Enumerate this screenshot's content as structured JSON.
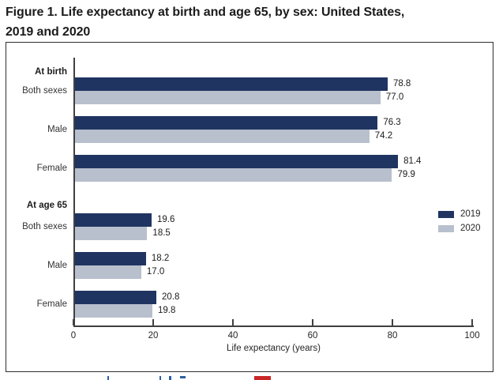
{
  "title": {
    "line1": "Figure 1. Life expectancy at birth and age 65, by sex: United States,",
    "line2": "2019 and 2020"
  },
  "chart_data": {
    "type": "bar",
    "orientation": "horizontal",
    "title": "Figure 1. Life expectancy at birth and age 65, by sex: United States, 2019 and 2020",
    "xlabel": "Life expectancy (years)",
    "xlim": [
      0,
      100
    ],
    "xticks": [
      0,
      20,
      40,
      60,
      80,
      100
    ],
    "grid": false,
    "legend_position": "right-middle",
    "series": [
      {
        "name": "2019",
        "color": "#1f3460"
      },
      {
        "name": "2020",
        "color": "#b8bfcd"
      }
    ],
    "sections": [
      {
        "header": "At birth",
        "rows": [
          {
            "label": "Both sexes",
            "values": [
              78.8,
              77.0
            ]
          },
          {
            "label": "Male",
            "values": [
              76.3,
              74.2
            ]
          },
          {
            "label": "Female",
            "values": [
              81.4,
              79.9
            ]
          }
        ]
      },
      {
        "header": "At age 65",
        "rows": [
          {
            "label": "Both sexes",
            "values": [
              19.6,
              18.5
            ]
          },
          {
            "label": "Male",
            "values": [
              18.2,
              17.0
            ]
          },
          {
            "label": "Female",
            "values": [
              20.8,
              19.8
            ]
          }
        ]
      }
    ]
  },
  "colors": {
    "axis": "#404040",
    "chart_border": "#2e2e2e",
    "footer_link_blue": "#2b5fa3",
    "footer_icon_red": "#cb2626"
  }
}
